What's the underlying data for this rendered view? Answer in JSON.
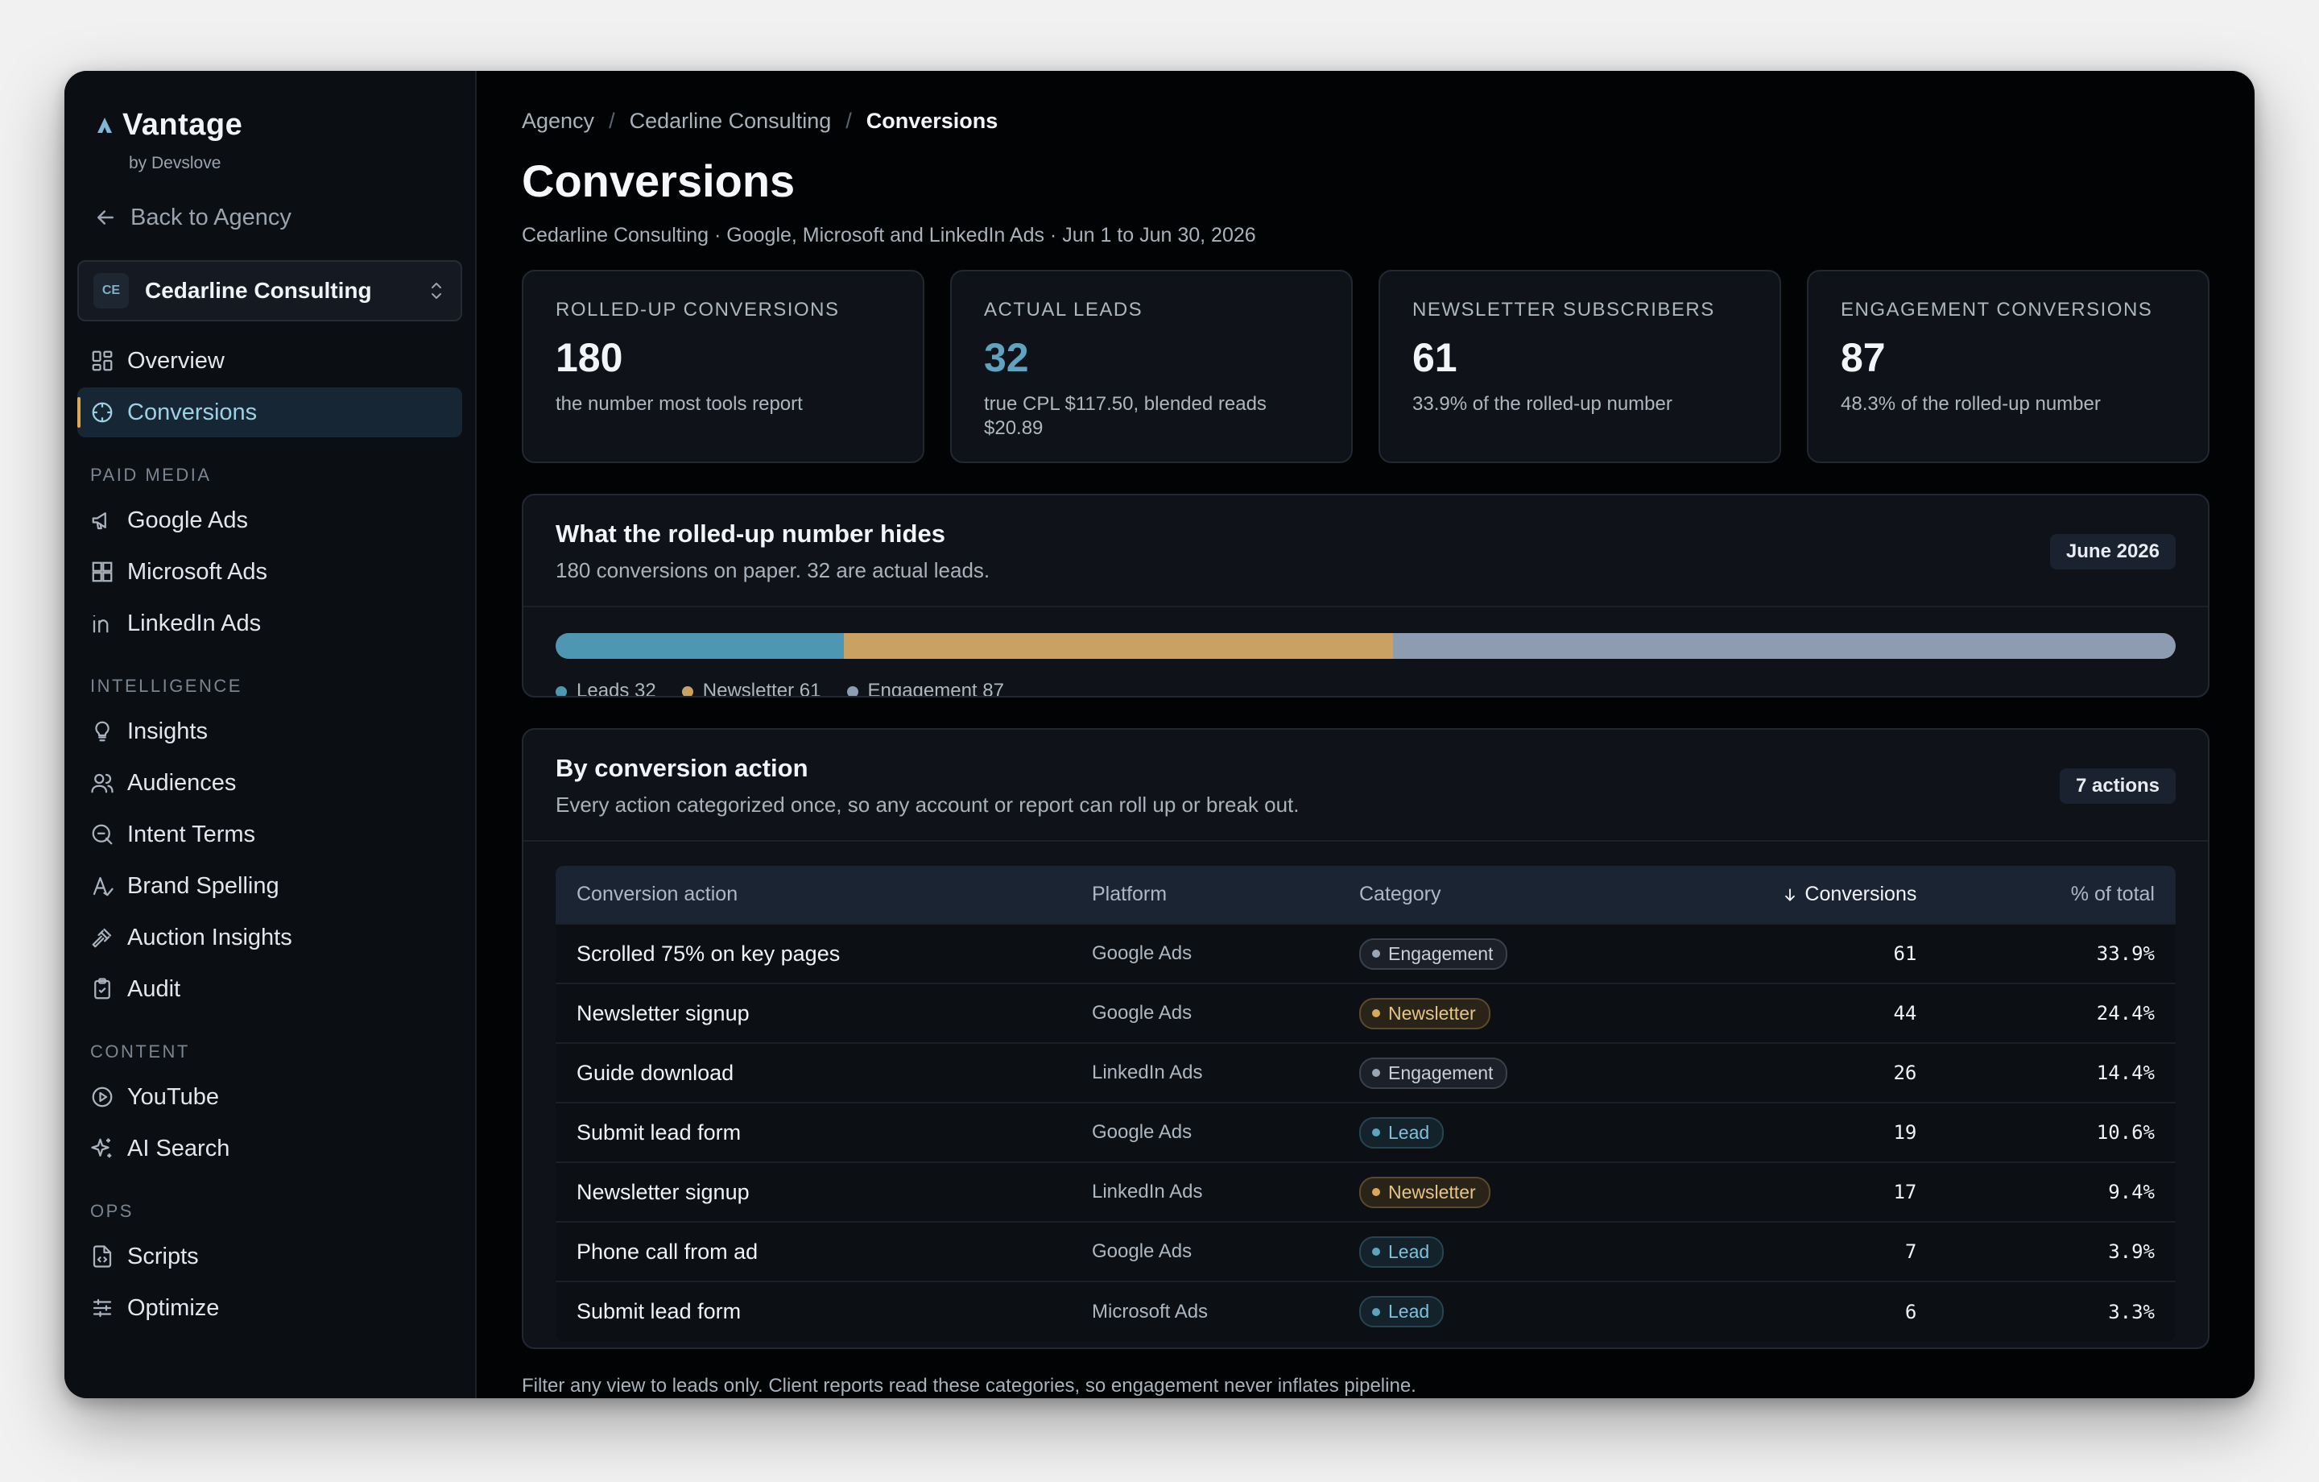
{
  "app": {
    "name": "Vantage",
    "byline": "by Devslove"
  },
  "sidebar": {
    "back_label": "Back to Agency",
    "client": {
      "badge": "CE",
      "name": "Cedarline Consulting"
    },
    "top_items": [
      {
        "label": "Overview",
        "icon": "grid-icon"
      },
      {
        "label": "Conversions",
        "icon": "target-icon",
        "active": true
      }
    ],
    "sections": [
      {
        "label": "PAID MEDIA",
        "items": [
          {
            "label": "Google Ads",
            "icon": "megaphone-icon"
          },
          {
            "label": "Microsoft Ads",
            "icon": "windows-grid-icon"
          },
          {
            "label": "LinkedIn Ads",
            "icon": "linkedin-icon"
          }
        ]
      },
      {
        "label": "INTELLIGENCE",
        "items": [
          {
            "label": "Insights",
            "icon": "lightbulb-icon"
          },
          {
            "label": "Audiences",
            "icon": "users-icon"
          },
          {
            "label": "Intent Terms",
            "icon": "search-icon"
          },
          {
            "label": "Brand Spelling",
            "icon": "spellcheck-icon"
          },
          {
            "label": "Auction Insights",
            "icon": "gavel-icon"
          },
          {
            "label": "Audit",
            "icon": "clipboard-icon"
          }
        ]
      },
      {
        "label": "CONTENT",
        "items": [
          {
            "label": "YouTube",
            "icon": "play-circle-icon"
          },
          {
            "label": "AI Search",
            "icon": "sparkles-icon"
          }
        ]
      },
      {
        "label": "OPS",
        "items": [
          {
            "label": "Scripts",
            "icon": "code-file-icon"
          },
          {
            "label": "Optimize",
            "icon": "sliders-icon"
          }
        ]
      }
    ]
  },
  "breadcrumb": {
    "level1": "Agency",
    "level2": "Cedarline Consulting",
    "current": "Conversions"
  },
  "page": {
    "title": "Conversions",
    "subtitle": "Cedarline Consulting · Google, Microsoft and LinkedIn Ads · Jun 1 to Jun 30, 2026"
  },
  "stats": [
    {
      "label": "ROLLED-UP CONVERSIONS",
      "value": "180",
      "note": "the number most tools report",
      "accent": false
    },
    {
      "label": "ACTUAL LEADS",
      "value": "32",
      "note": "true CPL $117.50, blended reads $20.89",
      "accent": true
    },
    {
      "label": "NEWSLETTER SUBSCRIBERS",
      "value": "61",
      "note": "33.9% of the rolled-up number",
      "accent": false
    },
    {
      "label": "ENGAGEMENT CONVERSIONS",
      "value": "87",
      "note": "48.3% of the rolled-up number",
      "accent": false
    }
  ],
  "breakdown": {
    "title": "What the rolled-up number hides",
    "subtitle": "180 conversions on paper. 32 are actual leads.",
    "period": "June 2026",
    "segments": [
      {
        "name": "Leads",
        "value": 32,
        "color": "#4e97b3"
      },
      {
        "name": "Newsletter",
        "value": 61,
        "color": "#c9a161"
      },
      {
        "name": "Engagement",
        "value": 87,
        "color": "#8d9cb0"
      }
    ]
  },
  "actions": {
    "title": "By conversion action",
    "subtitle": "Every action categorized once, so any account or report can roll up or break out.",
    "count_label": "7 actions",
    "columns": {
      "action": "Conversion action",
      "platform": "Platform",
      "category": "Category",
      "conversions": "Conversions",
      "share": "% of total"
    },
    "rows": [
      {
        "action": "Scrolled 75% on key pages",
        "platform": "Google Ads",
        "category": "Engagement",
        "conversions": "61",
        "share": "33.9%"
      },
      {
        "action": "Newsletter signup",
        "platform": "Google Ads",
        "category": "Newsletter",
        "conversions": "44",
        "share": "24.4%"
      },
      {
        "action": "Guide download",
        "platform": "LinkedIn Ads",
        "category": "Engagement",
        "conversions": "26",
        "share": "14.4%"
      },
      {
        "action": "Submit lead form",
        "platform": "Google Ads",
        "category": "Lead",
        "conversions": "19",
        "share": "10.6%"
      },
      {
        "action": "Newsletter signup",
        "platform": "LinkedIn Ads",
        "category": "Newsletter",
        "conversions": "17",
        "share": "9.4%"
      },
      {
        "action": "Phone call from ad",
        "platform": "Google Ads",
        "category": "Lead",
        "conversions": "7",
        "share": "3.9%"
      },
      {
        "action": "Submit lead form",
        "platform": "Microsoft Ads",
        "category": "Lead",
        "conversions": "6",
        "share": "3.3%"
      }
    ]
  },
  "footer_note": "Filter any view to leads only. Client reports read these categories, so engagement never inflates pipeline."
}
